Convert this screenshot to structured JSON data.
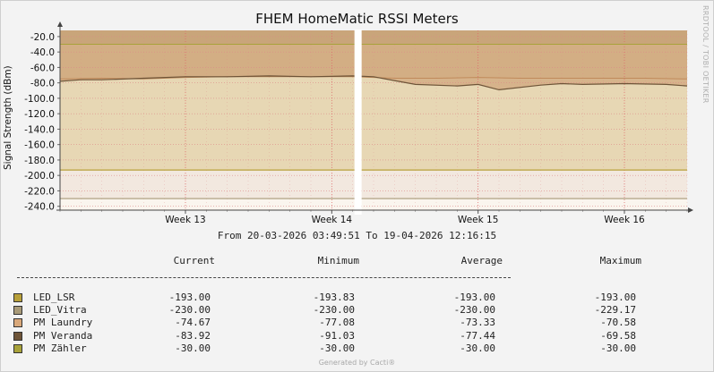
{
  "title": "FHEM HomeMatic RSSI Meters",
  "watermark": "RRDTOOL / TOBI OETIKER",
  "subtitle": "From 20-03-2026 03:49:51 To 19-04-2026 12:16:15",
  "footer": "Generated by Cacti®",
  "legend": {
    "headers": [
      "Current",
      "Minimum",
      "Average",
      "Maximum"
    ],
    "rows": [
      {
        "name": "LED_LSR",
        "color": "#b8a03a",
        "current": "-193.00",
        "minimum": "-193.83",
        "average": "-193.00",
        "maximum": "-193.00"
      },
      {
        "name": "LED_Vitra",
        "color": "#a89a78",
        "current": "-230.00",
        "minimum": "-230.00",
        "average": "-230.00",
        "maximum": "-229.17"
      },
      {
        "name": "PM Laundry",
        "color": "#d9a87a",
        "current": "-74.67",
        "minimum": "-77.08",
        "average": "-73.33",
        "maximum": "-70.58"
      },
      {
        "name": "PM Veranda",
        "color": "#6e5438",
        "current": "-83.92",
        "minimum": "-91.03",
        "average": "-77.44",
        "maximum": "-69.58"
      },
      {
        "name": "PM Zähler",
        "color": "#a8a23a",
        "current": "-30.00",
        "minimum": "-30.00",
        "average": "-30.00",
        "maximum": "-30.00"
      }
    ]
  },
  "chart_data": {
    "type": "area",
    "title": "FHEM HomeMatic RSSI Meters",
    "xlabel": "",
    "ylabel": "Signal Strength (dBm)",
    "ylim": [
      -245,
      -12
    ],
    "yticks": [
      "-20.0",
      "-40.0",
      "-60.0",
      "-80.0",
      "-100.0",
      "-120.0",
      "-140.0",
      "-160.0",
      "-180.0",
      "-200.0",
      "-220.0",
      "-240.0"
    ],
    "xlim": [
      "2026-03-20",
      "2026-04-19"
    ],
    "xticks": [
      {
        "label": "Week 13",
        "date": "2026-03-26"
      },
      {
        "label": "Week 14",
        "date": "2026-04-02"
      },
      {
        "label": "Week 15",
        "date": "2026-04-09"
      },
      {
        "label": "Week 16",
        "date": "2026-04-16"
      }
    ],
    "gap": [
      "2026-04-03",
      "2026-04-03"
    ],
    "grid": true,
    "series": [
      {
        "name": "PM Zähler",
        "color": "#a8a23a",
        "x": [
          "2026-03-20",
          "2026-04-19"
        ],
        "values": [
          -30,
          -30
        ]
      },
      {
        "name": "LED_LSR",
        "color": "#b8a03a",
        "x": [
          "2026-03-20",
          "2026-04-19"
        ],
        "values": [
          -193,
          -193
        ]
      },
      {
        "name": "LED_Vitra",
        "color": "#a89a78",
        "x": [
          "2026-03-20",
          "2026-04-19"
        ],
        "values": [
          -230,
          -230
        ]
      },
      {
        "name": "PM Laundry",
        "color": "#d9a87a",
        "x": [
          "2026-03-20",
          "2026-03-22",
          "2026-03-24",
          "2026-03-26",
          "2026-03-28",
          "2026-03-30",
          "2026-04-01",
          "2026-04-03",
          "2026-04-05",
          "2026-04-07",
          "2026-04-09",
          "2026-04-11",
          "2026-04-13",
          "2026-04-15",
          "2026-04-17",
          "2026-04-19"
        ],
        "values": [
          -75,
          -74,
          -75,
          -73,
          -72,
          -72,
          -72,
          -72,
          -74,
          -74,
          -73,
          -74,
          -74,
          -74,
          -74,
          -75
        ]
      },
      {
        "name": "PM Veranda",
        "color": "#6e5438",
        "x": [
          "2026-03-20",
          "2026-03-21",
          "2026-03-22",
          "2026-03-24",
          "2026-03-26",
          "2026-03-28",
          "2026-03-30",
          "2026-04-01",
          "2026-04-03",
          "2026-04-04",
          "2026-04-05",
          "2026-04-06",
          "2026-04-08",
          "2026-04-09",
          "2026-04-10",
          "2026-04-12",
          "2026-04-13",
          "2026-04-14",
          "2026-04-16",
          "2026-04-18",
          "2026-04-19"
        ],
        "values": [
          -78,
          -76,
          -76,
          -74,
          -72,
          -72,
          -71,
          -72,
          -71,
          -72,
          -77,
          -82,
          -84,
          -82,
          -89,
          -83,
          -81,
          -82,
          -81,
          -82,
          -84
        ]
      }
    ]
  }
}
